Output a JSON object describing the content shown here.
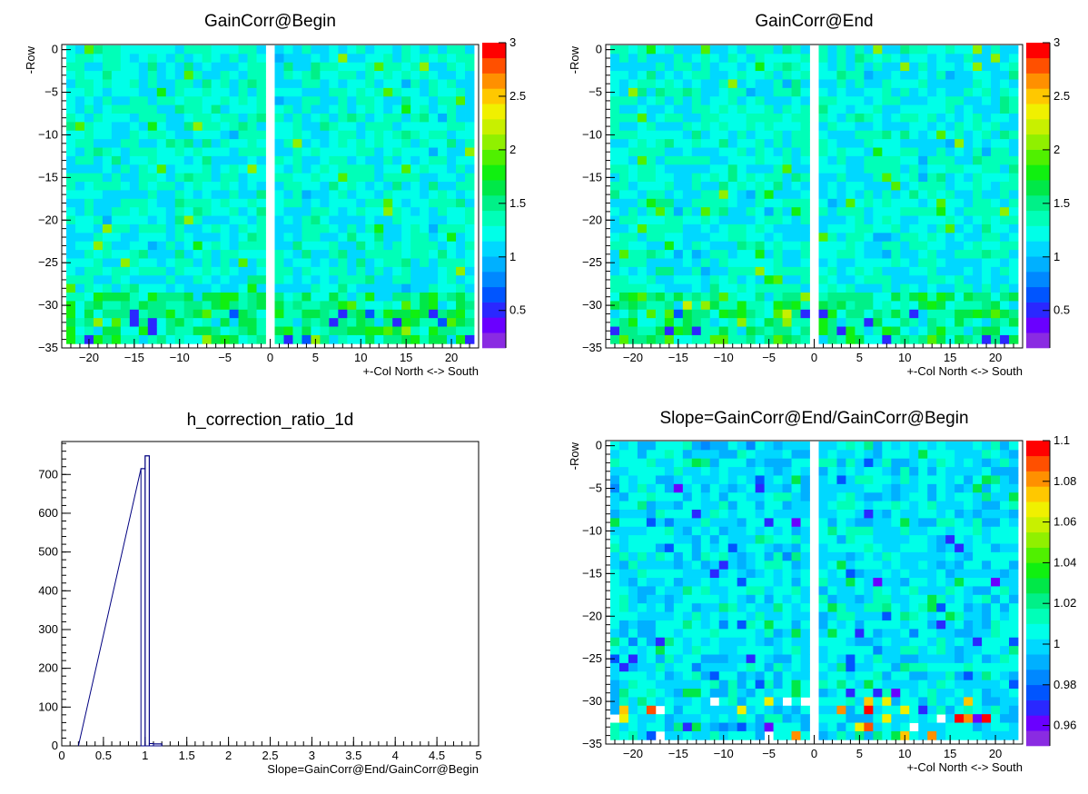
{
  "chart_data": [
    {
      "type": "heatmap",
      "title": "GainCorr@Begin",
      "xlabel": "+-Col North <-> South",
      "ylabel": "-Row",
      "xlim": [
        -23,
        23
      ],
      "ylim": [
        -35,
        0.6
      ],
      "x_ticks": [
        -20,
        -15,
        -10,
        -5,
        0,
        5,
        10,
        15,
        20
      ],
      "y_ticks": [
        0,
        -5,
        -10,
        -15,
        -20,
        -25,
        -30,
        -35
      ],
      "colorbar": {
        "min": 0.15,
        "max": 3,
        "levels": 20,
        "tick_values": [
          0.5,
          1,
          1.5,
          2,
          2.5,
          3
        ],
        "tick_labels": [
          "0.5",
          "1",
          "1.5",
          "2",
          "2.5",
          "3"
        ]
      },
      "palette": "rainbow",
      "cell_grid": {
        "x_ranges": [
          [
            -22,
            -1
          ],
          [
            1,
            22
          ]
        ],
        "y_range": [
          -34,
          0
        ]
      },
      "value_summary": {
        "typical": 1.2,
        "min": 0.5,
        "max": 2.5
      }
    },
    {
      "type": "heatmap",
      "title": "GainCorr@End",
      "xlabel": "+-Col North <-> South",
      "ylabel": "-Row",
      "xlim": [
        -23,
        23
      ],
      "ylim": [
        -35,
        0.6
      ],
      "x_ticks": [
        -20,
        -15,
        -10,
        -5,
        0,
        5,
        10,
        15,
        20
      ],
      "y_ticks": [
        0,
        -5,
        -10,
        -15,
        -20,
        -25,
        -30,
        -35
      ],
      "colorbar": {
        "min": 0.15,
        "max": 3,
        "levels": 20,
        "tick_values": [
          0.5,
          1,
          1.5,
          2,
          2.5,
          3
        ],
        "tick_labels": [
          "0.5",
          "1",
          "1.5",
          "2",
          "2.5",
          "3"
        ]
      },
      "palette": "rainbow",
      "cell_grid": {
        "x_ranges": [
          [
            -22,
            -1
          ],
          [
            1,
            22
          ]
        ],
        "y_range": [
          -34,
          0
        ]
      },
      "value_summary": {
        "typical": 1.2,
        "min": 0.5,
        "max": 2.5
      }
    },
    {
      "type": "bar",
      "title": "h_correction_ratio_1d",
      "xlabel": "Slope=GainCorr@End/GainCorr@Begin",
      "ylabel": "",
      "xlim": [
        0,
        5
      ],
      "ylim": [
        0,
        785
      ],
      "x_ticks": [
        0,
        0.5,
        1,
        1.5,
        2,
        2.5,
        3,
        3.5,
        4,
        4.5,
        5
      ],
      "x_tick_labels": [
        "0",
        "0.5",
        "1",
        "1.5",
        "2",
        "2.5",
        "3",
        "3.5",
        "4",
        "4.5",
        "5"
      ],
      "y_ticks": [
        0,
        100,
        200,
        300,
        400,
        500,
        600,
        700
      ],
      "y_tick_labels": [
        "0",
        "100",
        "200",
        "300",
        "400",
        "500",
        "600",
        "700"
      ],
      "histogram": "step",
      "bins": [
        {
          "x0": 0.95,
          "x1": 1.0,
          "value": 715
        },
        {
          "x0": 1.0,
          "x1": 1.05,
          "value": 748
        },
        {
          "x0": 1.05,
          "x1": 1.1,
          "value": 6
        },
        {
          "x0": 1.1,
          "x1": 1.2,
          "value": 5
        }
      ]
    },
    {
      "type": "heatmap",
      "title": "Slope=GainCorr@End/GainCorr@Begin",
      "xlabel": "+-Col North <-> South",
      "ylabel": "-Row",
      "xlim": [
        -23,
        23
      ],
      "ylim": [
        -35,
        0.6
      ],
      "x_ticks": [
        -20,
        -15,
        -10,
        -5,
        0,
        5,
        10,
        15,
        20
      ],
      "y_ticks": [
        0,
        -5,
        -10,
        -15,
        -20,
        -25,
        -30,
        -35
      ],
      "colorbar": {
        "min": 0.95,
        "max": 1.1,
        "levels": 20,
        "tick_values": [
          0.96,
          0.98,
          1,
          1.02,
          1.04,
          1.06,
          1.08,
          1.1
        ],
        "tick_labels": [
          "0.96",
          "0.98",
          "1",
          "1.02",
          "1.04",
          "1.06",
          "1.08",
          "1.1"
        ]
      },
      "palette": "rainbow",
      "cell_grid": {
        "x_ranges": [
          [
            -22,
            -1
          ],
          [
            1,
            22
          ]
        ],
        "y_range": [
          -34,
          0
        ]
      },
      "value_summary": {
        "typical": 1.0,
        "min": 0.96,
        "max": 1.1
      }
    }
  ]
}
